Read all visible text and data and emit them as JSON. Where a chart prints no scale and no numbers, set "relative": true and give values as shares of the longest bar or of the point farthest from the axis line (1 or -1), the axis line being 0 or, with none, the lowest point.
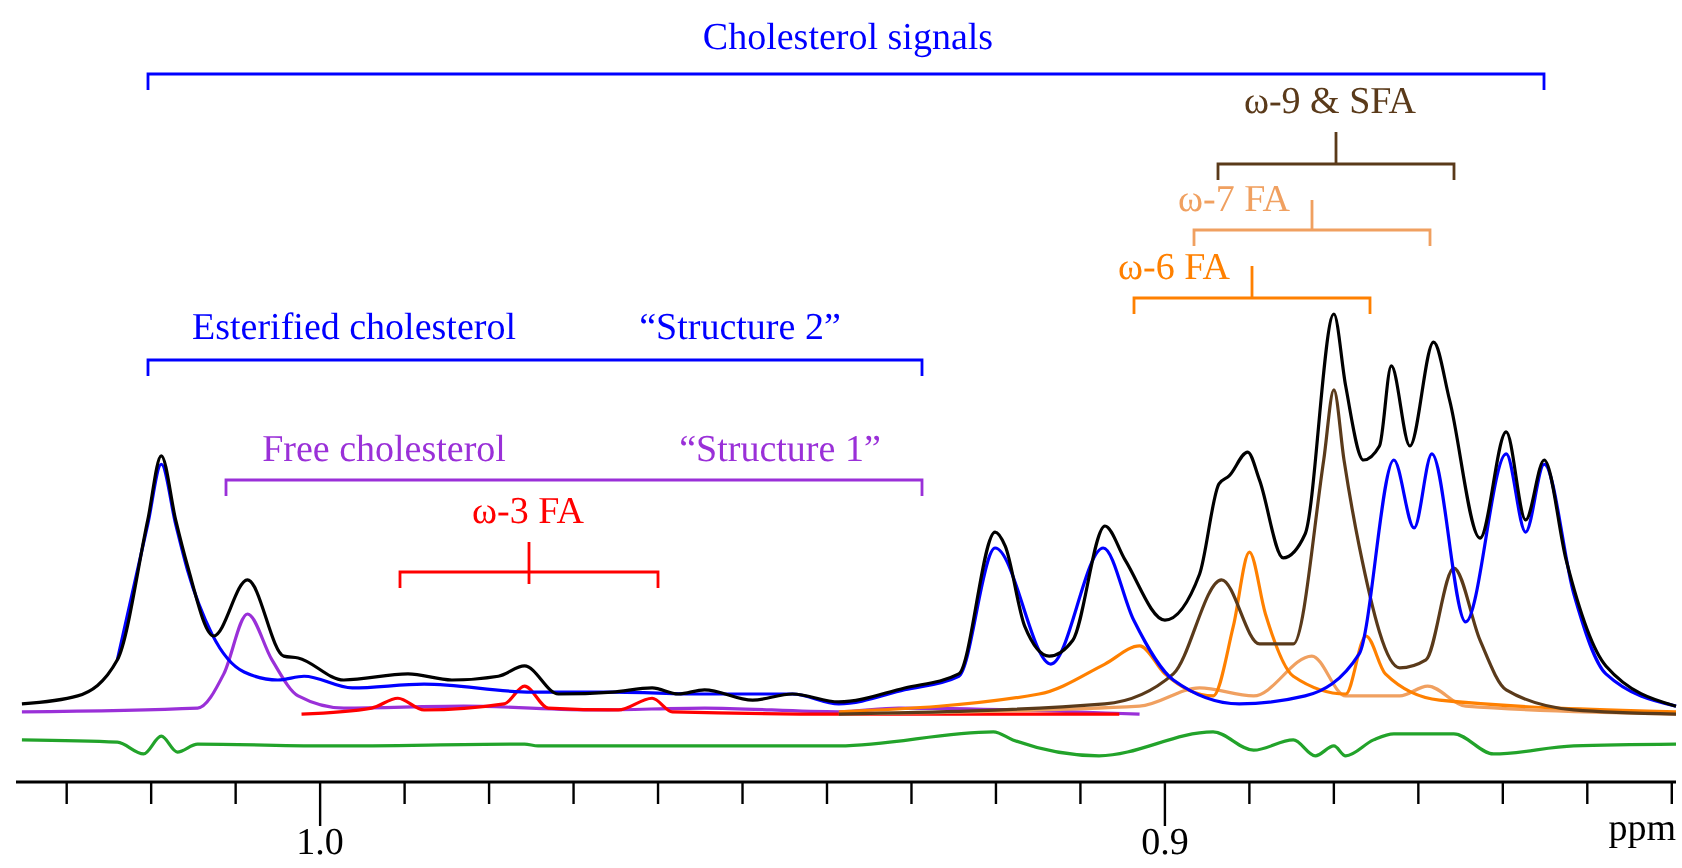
{
  "chart_data": {
    "type": "line",
    "relative": true,
    "xlabel": "ppm",
    "xlim": [
      1.036,
      0.8395
    ],
    "xticks": [
      {
        "value": 1.03,
        "label": null
      },
      {
        "value": 1.02,
        "label": null
      },
      {
        "value": 1.01,
        "label": null
      },
      {
        "value": 1.0,
        "label": "1.0"
      },
      {
        "value": 0.99,
        "label": null
      },
      {
        "value": 0.98,
        "label": null
      },
      {
        "value": 0.97,
        "label": null
      },
      {
        "value": 0.96,
        "label": null
      },
      {
        "value": 0.95,
        "label": null
      },
      {
        "value": 0.94,
        "label": null
      },
      {
        "value": 0.93,
        "label": null
      },
      {
        "value": 0.92,
        "label": null
      },
      {
        "value": 0.91,
        "label": null
      },
      {
        "value": 0.9,
        "label": "0.9"
      },
      {
        "value": 0.89,
        "label": null
      },
      {
        "value": 0.88,
        "label": null
      },
      {
        "value": 0.87,
        "label": null
      },
      {
        "value": 0.86,
        "label": null
      },
      {
        "value": 0.85,
        "label": null
      },
      {
        "value": 0.84,
        "label": null
      }
    ],
    "grid": false,
    "series": [
      {
        "color": "#22a32a",
        "x": [
          1.0353,
          1.024,
          1.0209,
          1.0188,
          1.0169,
          1.0145,
          0.9986,
          0.9758,
          0.9742,
          0.9592,
          0.9386,
          0.9203,
          0.918,
          0.9078,
          0.8943,
          0.8895,
          0.8848,
          0.8822,
          0.88,
          0.8786,
          0.8753,
          0.8729,
          0.8658,
          0.8611,
          0.8516,
          0.8395
        ],
        "values": [
          0.09,
          0.085,
          0.06,
          0.098,
          0.064,
          0.081,
          0.077,
          0.081,
          0.077,
          0.077,
          0.077,
          0.107,
          0.09,
          0.056,
          0.107,
          0.068,
          0.09,
          0.056,
          0.077,
          0.056,
          0.09,
          0.103,
          0.103,
          0.06,
          0.077,
          0.081
        ]
      },
      {
        "color": "#9a30d8",
        "x": [
          1.0353,
          1.0145,
          1.0114,
          1.0086,
          1.0057,
          1.0026,
          0.9972,
          0.983,
          0.9671,
          0.9545,
          0.9386,
          0.9315,
          0.903
        ],
        "values": [
          0.15,
          0.158,
          0.231,
          0.359,
          0.261,
          0.184,
          0.158,
          0.162,
          0.154,
          0.158,
          0.15,
          0.158,
          0.145
        ]
      },
      {
        "color": "#ff0000",
        "x": [
          1.0022,
          0.9939,
          0.9908,
          0.9877,
          0.9782,
          0.9758,
          0.973,
          0.9647,
          0.9607,
          0.9583,
          0.9386,
          0.9054
        ],
        "values": [
          0.145,
          0.158,
          0.179,
          0.154,
          0.167,
          0.205,
          0.158,
          0.154,
          0.179,
          0.15,
          0.145,
          0.145
        ]
      },
      {
        "color": "#f0a060",
        "x": [
          0.9386,
          0.903,
          0.8959,
          0.8895,
          0.8826,
          0.8786,
          0.8722,
          0.8689,
          0.8644,
          0.8395
        ],
        "values": [
          0.145,
          0.162,
          0.201,
          0.184,
          0.269,
          0.184,
          0.184,
          0.205,
          0.162,
          0.145
        ]
      },
      {
        "color": "#ff8000",
        "x": [
          0.9386,
          0.9149,
          0.9071,
          0.903,
          0.9,
          0.8943,
          0.8919,
          0.89,
          0.8881,
          0.8848,
          0.8786,
          0.8762,
          0.8739,
          0.8675,
          0.8395
        ],
        "values": [
          0.15,
          0.188,
          0.252,
          0.291,
          0.231,
          0.184,
          0.333,
          0.491,
          0.359,
          0.226,
          0.188,
          0.312,
          0.231,
          0.175,
          0.15
        ]
      },
      {
        "color": "#5a3a1a",
        "x": [
          0.9386,
          0.9071,
          0.899,
          0.8933,
          0.8888,
          0.8848,
          0.8812,
          0.88,
          0.8788,
          0.877,
          0.8722,
          0.8691,
          0.8658,
          0.8627,
          0.8596,
          0.8516,
          0.8395
        ],
        "values": [
          0.145,
          0.167,
          0.231,
          0.432,
          0.295,
          0.295,
          0.688,
          0.838,
          0.688,
          0.504,
          0.244,
          0.261,
          0.457,
          0.303,
          0.197,
          0.154,
          0.145
        ]
      },
      {
        "color": "#0000ff",
        "x": [
          1.024,
          1.0204,
          1.0188,
          1.0171,
          1.0157,
          1.0128,
          1.009,
          1.005,
          1.0019,
          0.9962,
          0.9877,
          0.9749,
          0.9654,
          0.9545,
          0.9441,
          0.9386,
          0.9308,
          0.9244,
          0.9201,
          0.9135,
          0.9073,
          0.9037,
          0.899,
          0.8912,
          0.8834,
          0.877,
          0.8729,
          0.8705,
          0.8684,
          0.8644,
          0.8596,
          0.8573,
          0.8551,
          0.8516,
          0.8478,
          0.8395
        ],
        "values": [
          0.261,
          0.551,
          0.679,
          0.551,
          0.453,
          0.316,
          0.235,
          0.218,
          0.226,
          0.201,
          0.209,
          0.192,
          0.192,
          0.188,
          0.188,
          0.167,
          0.197,
          0.226,
          0.5,
          0.252,
          0.5,
          0.346,
          0.218,
          0.167,
          0.184,
          0.274,
          0.688,
          0.543,
          0.701,
          0.342,
          0.701,
          0.534,
          0.679,
          0.402,
          0.231,
          0.162
        ]
      },
      {
        "color": "#000000",
        "x": [
          1.0353,
          1.0287,
          1.024,
          1.0204,
          1.0188,
          1.0171,
          1.0157,
          1.0126,
          1.0086,
          1.0043,
          1.0026,
          0.9972,
          0.9896,
          0.9844,
          0.9789,
          0.9758,
          0.9718,
          0.9654,
          0.9607,
          0.9576,
          0.9545,
          0.9488,
          0.9441,
          0.9386,
          0.9308,
          0.9244,
          0.9201,
          0.9189,
          0.9166,
          0.9137,
          0.9109,
          0.9071,
          0.9047,
          0.9,
          0.8959,
          0.8936,
          0.8924,
          0.8902,
          0.8888,
          0.886,
          0.8834,
          0.88,
          0.8786,
          0.8765,
          0.8746,
          0.8732,
          0.871,
          0.8682,
          0.8663,
          0.8627,
          0.8596,
          0.8573,
          0.8551,
          0.8525,
          0.8478,
          0.8395
        ],
        "values": [
          0.167,
          0.184,
          0.261,
          0.56,
          0.697,
          0.56,
          0.462,
          0.312,
          0.432,
          0.269,
          0.265,
          0.218,
          0.231,
          0.218,
          0.226,
          0.248,
          0.188,
          0.192,
          0.201,
          0.188,
          0.197,
          0.175,
          0.188,
          0.171,
          0.201,
          0.231,
          0.534,
          0.504,
          0.333,
          0.269,
          0.303,
          0.547,
          0.474,
          0.346,
          0.444,
          0.637,
          0.654,
          0.705,
          0.645,
          0.479,
          0.53,
          1.0,
          0.846,
          0.688,
          0.718,
          0.889,
          0.718,
          0.94,
          0.816,
          0.521,
          0.748,
          0.56,
          0.688,
          0.474,
          0.248,
          0.162
        ]
      }
    ],
    "annotations": [
      "Cholesterol signals",
      "ω-9 & SFA",
      "ω-7 FA",
      "ω-6 FA",
      "Esterified cholesterol",
      "“Structure 2”",
      "Free cholesterol",
      "“Structure 1”",
      "ω-3 FA"
    ]
  }
}
